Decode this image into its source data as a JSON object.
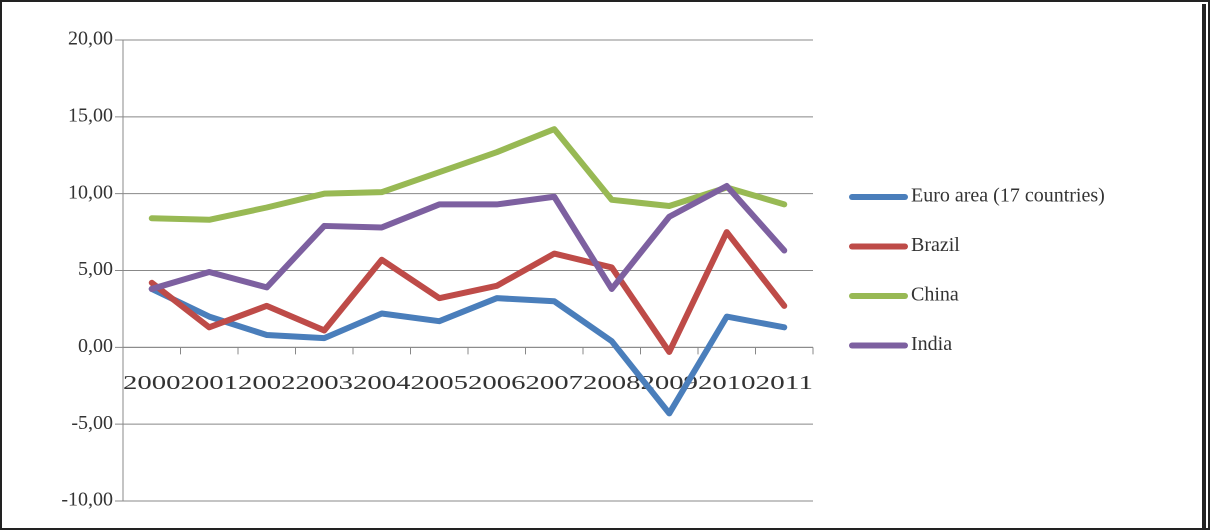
{
  "chart_data": {
    "type": "line",
    "categories": [
      "2000",
      "2001",
      "2002",
      "2003",
      "2004",
      "2005",
      "2006",
      "2007",
      "2008",
      "2009",
      "2010",
      "2011"
    ],
    "series": [
      {
        "name": "Euro area (17 countries)",
        "color": "#4a7ebb",
        "values": [
          3.8,
          2.0,
          0.8,
          0.6,
          2.2,
          1.7,
          3.2,
          3.0,
          0.4,
          -4.3,
          2.0,
          1.3
        ]
      },
      {
        "name": "Brazil",
        "color": "#be4b48",
        "values": [
          4.2,
          1.3,
          2.7,
          1.1,
          5.7,
          3.2,
          4.0,
          6.1,
          5.2,
          -0.3,
          7.5,
          2.7
        ]
      },
      {
        "name": "China",
        "color": "#98b954",
        "values": [
          8.4,
          8.3,
          9.1,
          10.0,
          10.1,
          11.4,
          12.7,
          14.2,
          9.6,
          9.2,
          10.4,
          9.3
        ]
      },
      {
        "name": "India",
        "color": "#7d60a0",
        "values": [
          3.8,
          4.9,
          3.9,
          7.9,
          7.8,
          9.3,
          9.3,
          9.8,
          3.8,
          8.5,
          10.5,
          6.3
        ]
      }
    ],
    "ylim": [
      -10,
      20
    ],
    "yticks": [
      {
        "value": -10,
        "label": "-10,00"
      },
      {
        "value": -5,
        "label": "-5,00"
      },
      {
        "value": 0,
        "label": "0,00"
      },
      {
        "value": 5,
        "label": "5,00"
      },
      {
        "value": 10,
        "label": "10,00"
      },
      {
        "value": 15,
        "label": "15,00"
      },
      {
        "value": 20,
        "label": "20,00"
      }
    ],
    "grid": true,
    "legend": "right"
  }
}
